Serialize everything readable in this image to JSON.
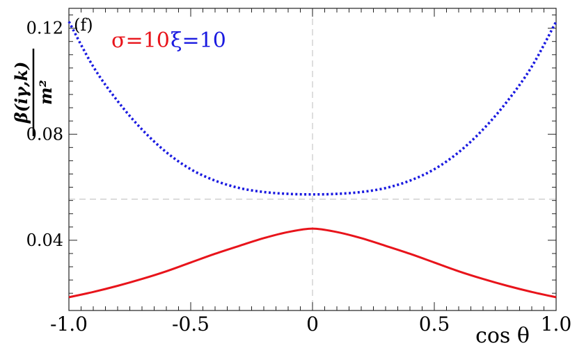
{
  "chart_data": {
    "type": "line",
    "panel_label": "(f)",
    "xlabel": "cos θ",
    "ylabel": {
      "numerator": "β(iγ,k)",
      "denominator": "m²"
    },
    "xlim": [
      -1.0,
      1.0
    ],
    "ylim": [
      0.0135,
      0.1275
    ],
    "x_ticks": [
      -1.0,
      -0.5,
      0,
      0.5,
      1.0
    ],
    "x_tick_labels": [
      "-1.0",
      "-0.5",
      "0",
      "0.5",
      "1.0"
    ],
    "y_ticks": [
      0.04,
      0.08,
      0.12
    ],
    "y_tick_labels": [
      "0.04",
      "0.08",
      "0.12"
    ],
    "reference_lines": {
      "x": 0,
      "y": 0.0555
    },
    "legend": {
      "placement": "top-left"
    },
    "grid": false,
    "series": [
      {
        "name": "σ=10",
        "color": "#e8141b",
        "style": "solid",
        "x": [
          -1.0,
          -0.9,
          -0.8,
          -0.7,
          -0.6,
          -0.5,
          -0.4,
          -0.3,
          -0.2,
          -0.1,
          0.0,
          0.1,
          0.2,
          0.3,
          0.4,
          0.5,
          0.6,
          0.7,
          0.8,
          0.9,
          1.0
        ],
        "y": [
          0.0185,
          0.0205,
          0.0228,
          0.0254,
          0.0283,
          0.0316,
          0.0349,
          0.0379,
          0.0408,
          0.0431,
          0.0444,
          0.0431,
          0.0408,
          0.0379,
          0.0349,
          0.0316,
          0.0283,
          0.0254,
          0.0228,
          0.0205,
          0.0185
        ]
      },
      {
        "name": "ξ=10",
        "color": "#1a1ae0",
        "style": "dotted",
        "x": [
          -1.0,
          -0.9,
          -0.8,
          -0.7,
          -0.6,
          -0.5,
          -0.4,
          -0.3,
          -0.2,
          -0.1,
          0.0,
          0.1,
          0.2,
          0.3,
          0.4,
          0.5,
          0.6,
          0.7,
          0.8,
          0.9,
          1.0
        ],
        "y": [
          0.1225,
          0.1055,
          0.0925,
          0.0818,
          0.0732,
          0.0668,
          0.0625,
          0.0597,
          0.0582,
          0.0575,
          0.0573,
          0.0575,
          0.0582,
          0.0597,
          0.0625,
          0.0668,
          0.0732,
          0.0818,
          0.0925,
          0.1055,
          0.1225
        ]
      }
    ]
  }
}
